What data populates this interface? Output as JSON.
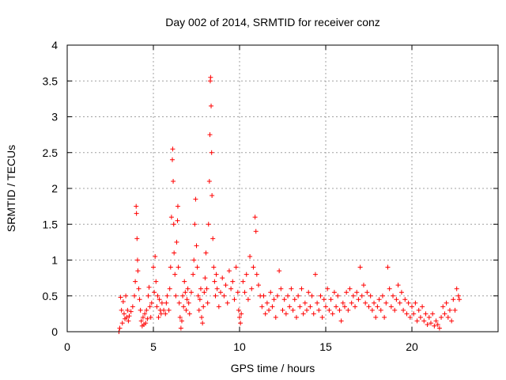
{
  "chart_data": {
    "type": "scatter",
    "title": "Day 002 of 2014, SRMTID for receiver conz",
    "xlabel": "GPS time / hours",
    "ylabel": "SRMTID / TECUs",
    "xlim": [
      0,
      25
    ],
    "ylim": [
      0,
      4
    ],
    "xticks": [
      0,
      5,
      10,
      15,
      20
    ],
    "xtick_labels": [
      "0",
      "5",
      "10",
      "15",
      "20"
    ],
    "yticks": [
      0,
      0.5,
      1,
      1.5,
      2,
      2.5,
      3,
      3.5,
      4
    ],
    "ytick_labels": [
      "0",
      "0.5",
      "1",
      "1.5",
      "2",
      "2.5",
      "3",
      "3.5",
      "4"
    ],
    "grid": true,
    "marker": "+",
    "color": "#ff0000",
    "series": [
      {
        "name": "SRMTID",
        "points": [
          [
            3.0,
            0.0
          ],
          [
            3.05,
            0.05
          ],
          [
            3.1,
            0.48
          ],
          [
            3.15,
            0.3
          ],
          [
            3.2,
            0.12
          ],
          [
            3.25,
            0.42
          ],
          [
            3.3,
            0.25
          ],
          [
            3.35,
            0.18
          ],
          [
            3.4,
            0.5
          ],
          [
            3.45,
            0.2
          ],
          [
            3.5,
            0.3
          ],
          [
            3.55,
            0.15
          ],
          [
            3.6,
            0.22
          ],
          [
            3.7,
            0.28
          ],
          [
            3.8,
            0.35
          ],
          [
            3.9,
            0.5
          ],
          [
            3.95,
            0.7
          ],
          [
            4.0,
            1.75
          ],
          [
            4.02,
            1.65
          ],
          [
            4.05,
            1.3
          ],
          [
            4.08,
            1.0
          ],
          [
            4.1,
            0.85
          ],
          [
            4.15,
            0.6
          ],
          [
            4.2,
            0.45
          ],
          [
            4.25,
            0.3
          ],
          [
            4.3,
            0.15
          ],
          [
            4.35,
            0.08
          ],
          [
            4.4,
            0.2
          ],
          [
            4.45,
            0.1
          ],
          [
            4.5,
            0.25
          ],
          [
            4.55,
            0.12
          ],
          [
            4.6,
            0.3
          ],
          [
            4.65,
            0.18
          ],
          [
            4.7,
            0.5
          ],
          [
            4.75,
            0.62
          ],
          [
            4.8,
            0.35
          ],
          [
            4.85,
            0.2
          ],
          [
            4.9,
            0.4
          ],
          [
            5.0,
            0.9
          ],
          [
            5.05,
            0.55
          ],
          [
            5.1,
            1.05
          ],
          [
            5.15,
            0.7
          ],
          [
            5.2,
            0.35
          ],
          [
            5.25,
            0.5
          ],
          [
            5.3,
            0.2
          ],
          [
            5.35,
            0.45
          ],
          [
            5.4,
            0.3
          ],
          [
            5.45,
            0.25
          ],
          [
            5.5,
            0.4
          ],
          [
            5.6,
            0.3
          ],
          [
            5.7,
            0.25
          ],
          [
            5.75,
            0.4
          ],
          [
            5.8,
            0.5
          ],
          [
            5.9,
            0.3
          ],
          [
            5.95,
            0.6
          ],
          [
            6.0,
            0.9
          ],
          [
            6.05,
            1.6
          ],
          [
            6.1,
            2.4
          ],
          [
            6.12,
            2.55
          ],
          [
            6.15,
            2.1
          ],
          [
            6.18,
            1.5
          ],
          [
            6.2,
            1.1
          ],
          [
            6.25,
            0.8
          ],
          [
            6.3,
            0.5
          ],
          [
            6.35,
            1.25
          ],
          [
            6.4,
            1.55
          ],
          [
            6.42,
            1.75
          ],
          [
            6.45,
            0.9
          ],
          [
            6.5,
            0.4
          ],
          [
            6.55,
            0.2
          ],
          [
            6.6,
            0.05
          ],
          [
            6.65,
            0.15
          ],
          [
            6.7,
            0.5
          ],
          [
            6.75,
            0.35
          ],
          [
            6.8,
            0.7
          ],
          [
            6.85,
            0.55
          ],
          [
            6.9,
            0.3
          ],
          [
            6.95,
            0.45
          ],
          [
            7.0,
            0.6
          ],
          [
            7.05,
            0.4
          ],
          [
            7.1,
            0.25
          ],
          [
            7.2,
            0.55
          ],
          [
            7.3,
            0.8
          ],
          [
            7.35,
            1.0
          ],
          [
            7.4,
            1.5
          ],
          [
            7.45,
            1.85
          ],
          [
            7.5,
            1.2
          ],
          [
            7.55,
            0.9
          ],
          [
            7.6,
            0.5
          ],
          [
            7.65,
            0.3
          ],
          [
            7.7,
            0.45
          ],
          [
            7.75,
            0.6
          ],
          [
            7.8,
            0.2
          ],
          [
            7.85,
            0.12
          ],
          [
            7.9,
            0.35
          ],
          [
            7.95,
            0.55
          ],
          [
            8.0,
            0.75
          ],
          [
            8.05,
            1.1
          ],
          [
            8.1,
            0.6
          ],
          [
            8.15,
            0.4
          ],
          [
            8.2,
            1.5
          ],
          [
            8.25,
            2.1
          ],
          [
            8.28,
            2.75
          ],
          [
            8.3,
            3.5
          ],
          [
            8.32,
            3.55
          ],
          [
            8.35,
            3.15
          ],
          [
            8.38,
            2.5
          ],
          [
            8.4,
            1.9
          ],
          [
            8.45,
            1.3
          ],
          [
            8.5,
            0.9
          ],
          [
            8.55,
            0.7
          ],
          [
            8.6,
            0.5
          ],
          [
            8.65,
            0.8
          ],
          [
            8.7,
            0.6
          ],
          [
            8.8,
            0.35
          ],
          [
            8.9,
            0.55
          ],
          [
            9.0,
            0.75
          ],
          [
            9.1,
            0.5
          ],
          [
            9.2,
            0.65
          ],
          [
            9.3,
            0.4
          ],
          [
            9.4,
            0.85
          ],
          [
            9.5,
            0.6
          ],
          [
            9.6,
            0.7
          ],
          [
            9.7,
            0.45
          ],
          [
            9.8,
            0.9
          ],
          [
            9.9,
            0.55
          ],
          [
            9.95,
            0.3
          ],
          [
            10.0,
            0.2
          ],
          [
            10.05,
            0.12
          ],
          [
            10.1,
            0.25
          ],
          [
            10.2,
            0.7
          ],
          [
            10.3,
            0.55
          ],
          [
            10.4,
            0.8
          ],
          [
            10.5,
            0.45
          ],
          [
            10.6,
            1.05
          ],
          [
            10.7,
            0.6
          ],
          [
            10.8,
            0.9
          ],
          [
            10.9,
            1.6
          ],
          [
            10.95,
            1.4
          ],
          [
            11.0,
            0.8
          ],
          [
            11.1,
            0.65
          ],
          [
            11.2,
            0.5
          ],
          [
            11.3,
            0.35
          ],
          [
            11.4,
            0.5
          ],
          [
            11.5,
            0.25
          ],
          [
            11.6,
            0.4
          ],
          [
            11.7,
            0.3
          ],
          [
            11.8,
            0.55
          ],
          [
            11.9,
            0.35
          ],
          [
            12.0,
            0.45
          ],
          [
            12.1,
            0.2
          ],
          [
            12.2,
            0.5
          ],
          [
            12.3,
            0.85
          ],
          [
            12.4,
            0.6
          ],
          [
            12.5,
            0.3
          ],
          [
            12.6,
            0.45
          ],
          [
            12.7,
            0.25
          ],
          [
            12.8,
            0.5
          ],
          [
            12.9,
            0.35
          ],
          [
            13.0,
            0.6
          ],
          [
            13.1,
            0.3
          ],
          [
            13.2,
            0.45
          ],
          [
            13.3,
            0.2
          ],
          [
            13.4,
            0.5
          ],
          [
            13.5,
            0.35
          ],
          [
            13.6,
            0.6
          ],
          [
            13.7,
            0.25
          ],
          [
            13.8,
            0.4
          ],
          [
            13.9,
            0.3
          ],
          [
            14.0,
            0.55
          ],
          [
            14.1,
            0.35
          ],
          [
            14.2,
            0.5
          ],
          [
            14.3,
            0.25
          ],
          [
            14.4,
            0.8
          ],
          [
            14.5,
            0.4
          ],
          [
            14.6,
            0.3
          ],
          [
            14.7,
            0.5
          ],
          [
            14.8,
            0.2
          ],
          [
            14.9,
            0.45
          ],
          [
            15.0,
            0.35
          ],
          [
            15.1,
            0.6
          ],
          [
            15.2,
            0.3
          ],
          [
            15.3,
            0.45
          ],
          [
            15.4,
            0.25
          ],
          [
            15.5,
            0.55
          ],
          [
            15.6,
            0.35
          ],
          [
            15.7,
            0.5
          ],
          [
            15.8,
            0.3
          ],
          [
            15.9,
            0.15
          ],
          [
            16.0,
            0.4
          ],
          [
            16.1,
            0.35
          ],
          [
            16.2,
            0.55
          ],
          [
            16.3,
            0.3
          ],
          [
            16.4,
            0.6
          ],
          [
            16.5,
            0.4
          ],
          [
            16.6,
            0.5
          ],
          [
            16.7,
            0.35
          ],
          [
            16.8,
            0.55
          ],
          [
            16.9,
            0.45
          ],
          [
            17.0,
            0.9
          ],
          [
            17.1,
            0.5
          ],
          [
            17.2,
            0.65
          ],
          [
            17.3,
            0.4
          ],
          [
            17.4,
            0.55
          ],
          [
            17.5,
            0.35
          ],
          [
            17.6,
            0.5
          ],
          [
            17.7,
            0.3
          ],
          [
            17.8,
            0.4
          ],
          [
            17.9,
            0.2
          ],
          [
            18.0,
            0.35
          ],
          [
            18.1,
            0.45
          ],
          [
            18.2,
            0.3
          ],
          [
            18.3,
            0.5
          ],
          [
            18.4,
            0.2
          ],
          [
            18.5,
            0.4
          ],
          [
            18.6,
            0.9
          ],
          [
            18.7,
            0.6
          ],
          [
            18.8,
            0.35
          ],
          [
            18.9,
            0.5
          ],
          [
            19.0,
            0.3
          ],
          [
            19.1,
            0.45
          ],
          [
            19.2,
            0.65
          ],
          [
            19.3,
            0.4
          ],
          [
            19.4,
            0.55
          ],
          [
            19.5,
            0.3
          ],
          [
            19.6,
            0.45
          ],
          [
            19.7,
            0.25
          ],
          [
            19.8,
            0.4
          ],
          [
            19.9,
            0.2
          ],
          [
            20.0,
            0.35
          ],
          [
            20.1,
            0.25
          ],
          [
            20.2,
            0.4
          ],
          [
            20.3,
            0.15
          ],
          [
            20.4,
            0.3
          ],
          [
            20.5,
            0.2
          ],
          [
            20.6,
            0.35
          ],
          [
            20.7,
            0.15
          ],
          [
            20.8,
            0.25
          ],
          [
            20.9,
            0.1
          ],
          [
            21.0,
            0.2
          ],
          [
            21.1,
            0.12
          ],
          [
            21.2,
            0.25
          ],
          [
            21.3,
            0.08
          ],
          [
            21.4,
            0.15
          ],
          [
            21.5,
            0.1
          ],
          [
            21.6,
            0.05
          ],
          [
            21.7,
            0.2
          ],
          [
            21.8,
            0.35
          ],
          [
            21.9,
            0.25
          ],
          [
            22.0,
            0.4
          ],
          [
            22.1,
            0.2
          ],
          [
            22.2,
            0.3
          ],
          [
            22.3,
            0.15
          ],
          [
            22.4,
            0.45
          ],
          [
            22.5,
            0.3
          ],
          [
            22.6,
            0.6
          ],
          [
            22.7,
            0.5
          ],
          [
            22.75,
            0.45
          ]
        ]
      }
    ]
  }
}
